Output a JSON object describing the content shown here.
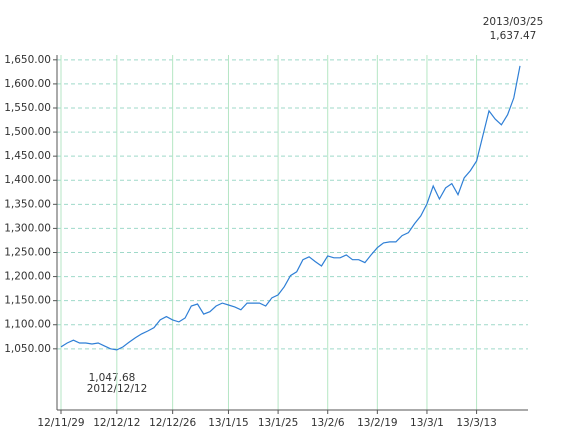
{
  "chart_data": {
    "type": "line",
    "categories": [
      "12/11/29",
      null,
      null,
      null,
      null,
      null,
      null,
      null,
      null,
      "12/12/12",
      null,
      null,
      null,
      null,
      null,
      null,
      null,
      null,
      "12/12/26",
      null,
      null,
      null,
      null,
      null,
      null,
      null,
      null,
      "13/1/15",
      null,
      null,
      null,
      null,
      null,
      null,
      null,
      "13/1/25",
      null,
      null,
      null,
      null,
      null,
      null,
      null,
      "13/2/6",
      null,
      null,
      null,
      null,
      null,
      null,
      null,
      "13/2/19",
      null,
      null,
      null,
      null,
      null,
      null,
      null,
      "13/3/1",
      null,
      null,
      null,
      null,
      null,
      null,
      null,
      "13/3/13",
      null,
      null,
      null,
      null,
      null,
      null,
      null
    ],
    "series": [
      {
        "color": "#2f7fd6",
        "values": [
          1054,
          1062,
          1068,
          1062,
          1062,
          1060,
          1062,
          1056,
          1050,
          1047.68,
          1054,
          1064,
          1073,
          1081,
          1087,
          1094,
          1110,
          1117,
          1110,
          1106,
          1114,
          1139,
          1143,
          1122,
          1127,
          1139,
          1145,
          1141,
          1137,
          1131,
          1145,
          1145,
          1145,
          1139,
          1156,
          1162,
          1179,
          1202,
          1210,
          1235,
          1241,
          1231,
          1222,
          1243,
          1239,
          1239,
          1245,
          1235,
          1235,
          1229,
          1245,
          1260,
          1270,
          1272,
          1272,
          1285,
          1291,
          1310,
          1326,
          1351,
          1388,
          1361,
          1384,
          1393,
          1370,
          1405,
          1420,
          1440,
          1492,
          1544,
          1527,
          1515,
          1536,
          1571,
          1637.47
        ]
      }
    ],
    "ylim": [
      923,
      1660
    ],
    "yticks": [
      {
        "value": 1050,
        "label": "1,050.00"
      },
      {
        "value": 1100,
        "label": "1,100.00"
      },
      {
        "value": 1150,
        "label": "1,150.00"
      },
      {
        "value": 1200,
        "label": "1,200.00"
      },
      {
        "value": 1250,
        "label": "1,250.00"
      },
      {
        "value": 1300,
        "label": "1,300.00"
      },
      {
        "value": 1350,
        "label": "1,350.00"
      },
      {
        "value": 1400,
        "label": "1,400.00"
      },
      {
        "value": 1450,
        "label": "1,450.00"
      },
      {
        "value": 1500,
        "label": "1,500.00"
      },
      {
        "value": 1550,
        "label": "1,550.00"
      },
      {
        "value": 1600,
        "label": "1,600.00"
      },
      {
        "value": 1650,
        "label": "1,650.00"
      }
    ],
    "grid": true,
    "annotations": [
      {
        "date": "2013/03/25",
        "value": "1,637.47"
      },
      {
        "value": "1,047.68",
        "date": "2012/12/12"
      }
    ]
  }
}
